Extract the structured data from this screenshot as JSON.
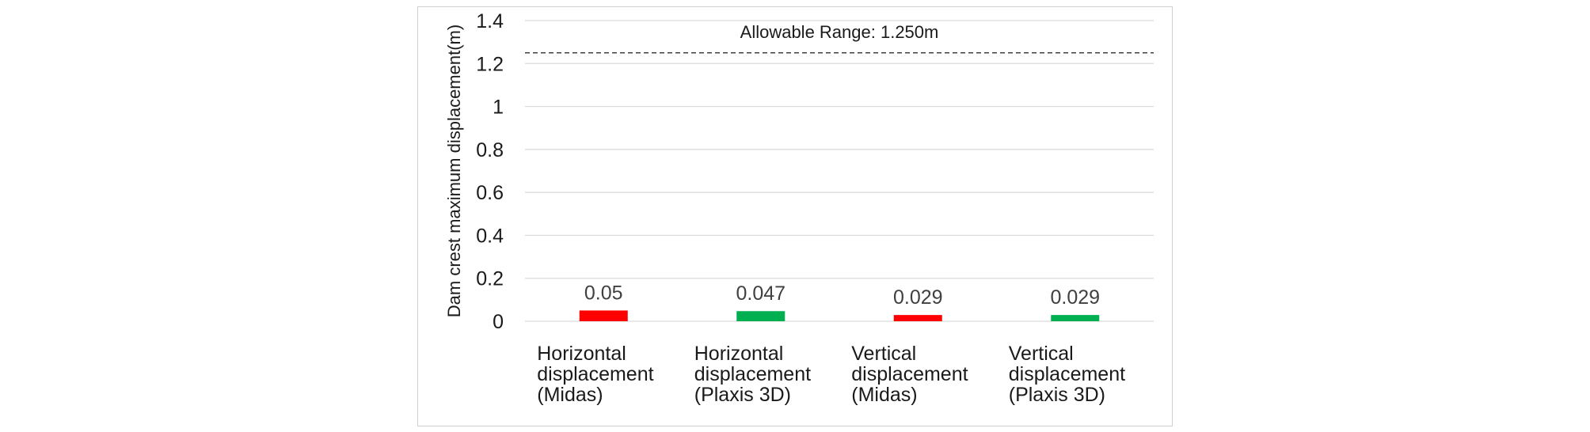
{
  "chart_data": {
    "type": "bar",
    "title": "",
    "xlabel": "",
    "ylabel": "Dam crest maximum displacement(m)",
    "ylim": [
      0,
      1.4
    ],
    "yticks": [
      "0",
      "0.2",
      "0.4",
      "0.6",
      "0.8",
      "1",
      "1.2",
      "1.4"
    ],
    "grid": true,
    "categories": [
      [
        "Horizontal",
        "displacement",
        "(Midas)"
      ],
      [
        "Horizontal",
        "displacement",
        "(Plaxis 3D)"
      ],
      [
        "Vertical",
        "displacement",
        "(Midas)"
      ],
      [
        "Vertical",
        "displacement",
        "(Plaxis 3D)"
      ]
    ],
    "values": [
      0.05,
      0.047,
      0.029,
      0.029
    ],
    "value_labels": [
      "0.05",
      "0.047",
      "0.029",
      "0.029"
    ],
    "bar_colors": [
      "#ff0000",
      "#00b050",
      "#ff0000",
      "#00b050"
    ],
    "reference_line": {
      "value": 1.25,
      "label": "Allowable Range: 1.250m",
      "style": "dashed",
      "color": "#404040"
    },
    "gridline_color": "#d9d9d9"
  }
}
